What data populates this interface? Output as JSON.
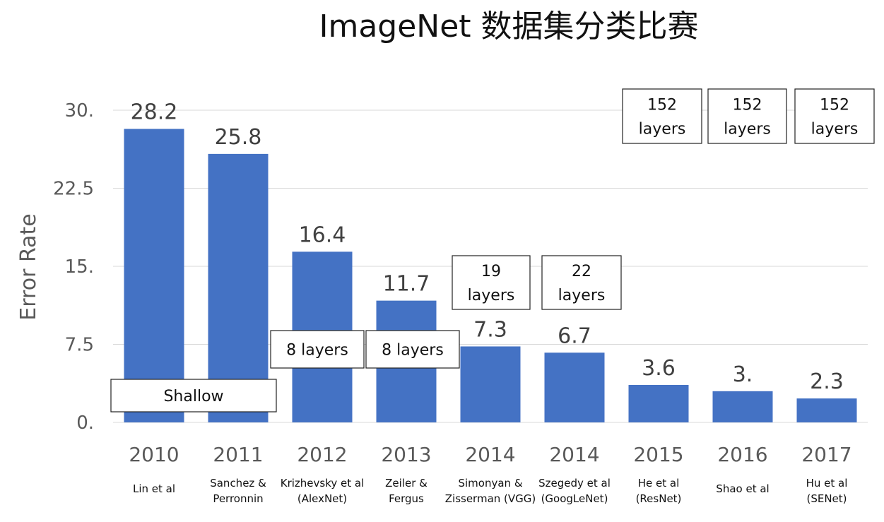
{
  "chart_data": {
    "type": "bar",
    "title": "ImageNet 数据集分类比赛",
    "ylabel": "Error Rate",
    "ylim": [
      0,
      30
    ],
    "yticks": [
      "0.",
      "7.5",
      "15.",
      "22.5",
      "30."
    ],
    "grid": true,
    "bar_color": "#4472C4",
    "categories": [
      "2010",
      "2011",
      "2012",
      "2013",
      "2014",
      "2014",
      "2015",
      "2016",
      "2017"
    ],
    "authors": [
      [
        "Lin et al"
      ],
      [
        "Sanchez &",
        "Perronnin"
      ],
      [
        "Krizhevsky et al",
        "(AlexNet)"
      ],
      [
        "Zeiler &",
        "Fergus"
      ],
      [
        "Simonyan &",
        "Zisserman (VGG)"
      ],
      [
        "Szegedy et al",
        "(GoogLeNet)"
      ],
      [
        "He et al",
        "(ResNet)"
      ],
      [
        "Shao et al"
      ],
      [
        "Hu et al",
        "(SENet)"
      ]
    ],
    "values": [
      28.2,
      25.8,
      16.4,
      11.7,
      7.3,
      6.7,
      3.6,
      3.0,
      2.3
    ],
    "value_labels": [
      "28.2",
      "25.8",
      "16.4",
      "11.7",
      "7.3",
      "6.7",
      "3.6",
      "3.",
      "2.3"
    ],
    "annotations": [
      {
        "lines": [
          "Shallow"
        ]
      },
      {
        "lines": [
          "8 layers"
        ]
      },
      {
        "lines": [
          "8 layers"
        ]
      },
      {
        "lines": [
          "19",
          "layers"
        ]
      },
      {
        "lines": [
          "22",
          "layers"
        ]
      },
      {
        "lines": [
          "152",
          "layers"
        ]
      },
      {
        "lines": [
          "152",
          "layers"
        ]
      },
      {
        "lines": [
          "152",
          "layers"
        ]
      }
    ]
  }
}
